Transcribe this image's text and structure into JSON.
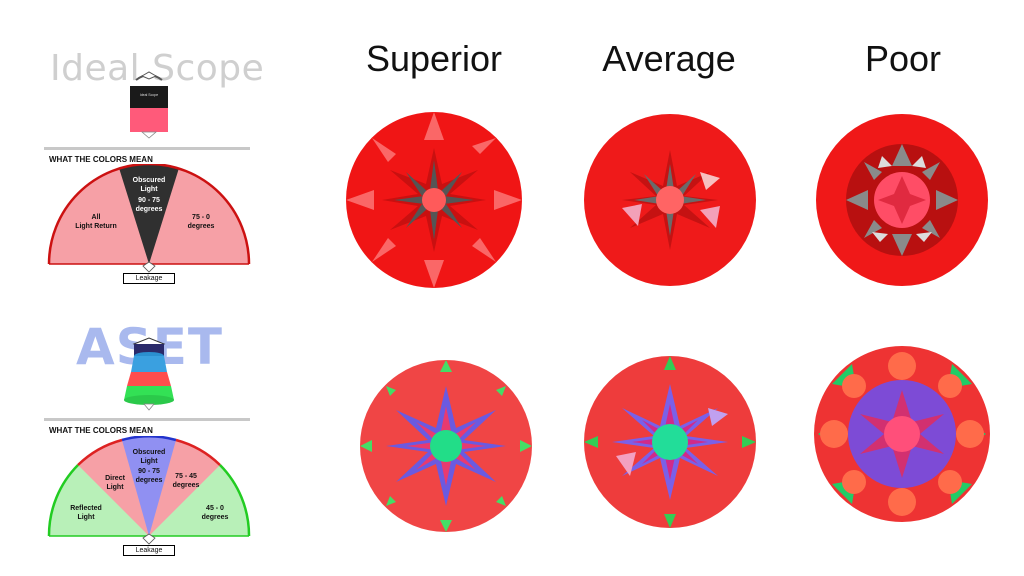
{
  "brands": {
    "ideal_scope": "Ideal Scope",
    "aset": "ASET",
    "ideal_scope_device": "Ideal Scope"
  },
  "columns": [
    "Superior",
    "Average",
    "Poor"
  ],
  "ideal_scope_legend": {
    "title": "WHAT THE COLORS MEAN",
    "obscured": [
      "Obscured",
      "Light",
      "90 - 75",
      "degrees"
    ],
    "all_light": [
      "All",
      "Light Return"
    ],
    "range": [
      "75 - 0",
      "degrees"
    ],
    "leakage": "Leakage"
  },
  "aset_legend": {
    "title": "WHAT THE COLORS MEAN",
    "obscured": [
      "Obscured",
      "Light",
      "90 - 75",
      "degrees"
    ],
    "direct": [
      "Direct",
      "Light"
    ],
    "range_mid": [
      "75 - 45",
      "degrees"
    ],
    "reflected": [
      "Reflected",
      "Light"
    ],
    "range_low": [
      "45 - 0",
      "degrees"
    ],
    "leakage": "Leakage"
  },
  "colors": {
    "ideal_red": "#f01515",
    "ideal_pink": "#f6a0a6",
    "obscured_dark": "#303030",
    "aset_red": "#f04545",
    "aset_blue": "#7f7ff0",
    "aset_green": "#22dd88",
    "aset_light_green": "#b8f0b8"
  },
  "images": [
    {
      "row": "ideal_scope",
      "grade": "Superior"
    },
    {
      "row": "ideal_scope",
      "grade": "Average"
    },
    {
      "row": "ideal_scope",
      "grade": "Poor"
    },
    {
      "row": "aset",
      "grade": "Superior"
    },
    {
      "row": "aset",
      "grade": "Average"
    },
    {
      "row": "aset",
      "grade": "Poor"
    }
  ]
}
